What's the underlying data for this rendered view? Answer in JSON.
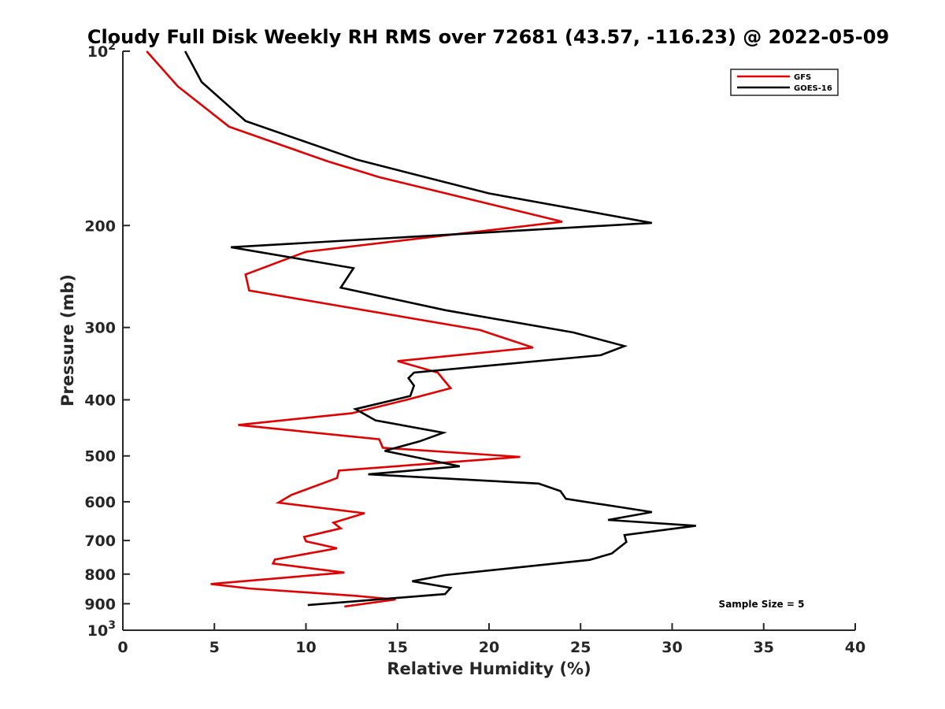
{
  "chart_data": {
    "type": "line",
    "title": "Cloudy Full Disk Weekly RH RMS over 72681 (43.57, -116.23) @ 2022-05-09",
    "xlabel": "Relative Humidity (%)",
    "ylabel": "Pressure (mb)",
    "xlim": [
      0,
      40
    ],
    "ylim": [
      100,
      1000
    ],
    "y_scale": "log",
    "y_reversed": true,
    "grid": false,
    "legend_position": "top-right",
    "x_ticks": [
      "0",
      "5",
      "10",
      "15",
      "20",
      "25",
      "30",
      "35",
      "40"
    ],
    "y_ticks": [
      {
        "value": 100,
        "base": "10",
        "exp": "2"
      },
      {
        "value": 200,
        "label": "200"
      },
      {
        "value": 300,
        "label": "300"
      },
      {
        "value": 400,
        "label": "400"
      },
      {
        "value": 500,
        "label": "500"
      },
      {
        "value": 600,
        "label": "600"
      },
      {
        "value": 700,
        "label": "700"
      },
      {
        "value": 800,
        "label": "800"
      },
      {
        "value": 900,
        "label": "900"
      },
      {
        "value": 1000,
        "base": "10",
        "exp": "3"
      }
    ],
    "series": [
      {
        "name": "GFS",
        "color": "#e00000",
        "points": [
          [
            1.3,
            100
          ],
          [
            3.0,
            115
          ],
          [
            5.8,
            135
          ],
          [
            11.2,
            155
          ],
          [
            14.0,
            165
          ],
          [
            24.0,
            197
          ],
          [
            10.0,
            222
          ],
          [
            6.7,
            243
          ],
          [
            6.9,
            259
          ],
          [
            19.5,
            303
          ],
          [
            22.4,
            325
          ],
          [
            15.0,
            343
          ],
          [
            17.2,
            359
          ],
          [
            17.9,
            382
          ],
          [
            15.5,
            400
          ],
          [
            12.5,
            422
          ],
          [
            6.3,
            442
          ],
          [
            14.0,
            468
          ],
          [
            14.2,
            484
          ],
          [
            21.7,
            502
          ],
          [
            11.8,
            530
          ],
          [
            11.7,
            546
          ],
          [
            9.2,
            584
          ],
          [
            8.5,
            602
          ],
          [
            13.2,
            628
          ],
          [
            11.5,
            652
          ],
          [
            11.9,
            667
          ],
          [
            9.9,
            690
          ],
          [
            10.0,
            702
          ],
          [
            11.7,
            722
          ],
          [
            8.3,
            755
          ],
          [
            8.2,
            767
          ],
          [
            12.1,
            795
          ],
          [
            4.8,
            832
          ],
          [
            6.9,
            847
          ],
          [
            12.7,
            872
          ],
          [
            14.9,
            885
          ],
          [
            12.1,
            910
          ]
        ]
      },
      {
        "name": "GOES-16",
        "color": "#000000",
        "points": [
          [
            3.4,
            100
          ],
          [
            4.3,
            113
          ],
          [
            6.7,
            132
          ],
          [
            12.8,
            154
          ],
          [
            20.0,
            176
          ],
          [
            28.9,
            198
          ],
          [
            5.9,
            218
          ],
          [
            12.6,
            237
          ],
          [
            11.9,
            256
          ],
          [
            17.6,
            280
          ],
          [
            24.6,
            306
          ],
          [
            27.4,
            323
          ],
          [
            26.1,
            335
          ],
          [
            15.9,
            359
          ],
          [
            15.6,
            367
          ],
          [
            15.9,
            378
          ],
          [
            15.7,
            394
          ],
          [
            12.7,
            415
          ],
          [
            13.8,
            434
          ],
          [
            17.5,
            456
          ],
          [
            16.2,
            472
          ],
          [
            14.3,
            490
          ],
          [
            18.4,
            521
          ],
          [
            13.4,
            538
          ],
          [
            22.7,
            558
          ],
          [
            23.9,
            575
          ],
          [
            24.2,
            593
          ],
          [
            28.9,
            625
          ],
          [
            26.5,
            645
          ],
          [
            31.3,
            660
          ],
          [
            27.4,
            685
          ],
          [
            27.5,
            704
          ],
          [
            26.7,
            737
          ],
          [
            25.5,
            756
          ],
          [
            17.6,
            803
          ],
          [
            15.8,
            823
          ],
          [
            17.9,
            845
          ],
          [
            17.6,
            866
          ],
          [
            10.1,
            905
          ]
        ]
      }
    ],
    "annotation": "Sample Size = 5"
  }
}
